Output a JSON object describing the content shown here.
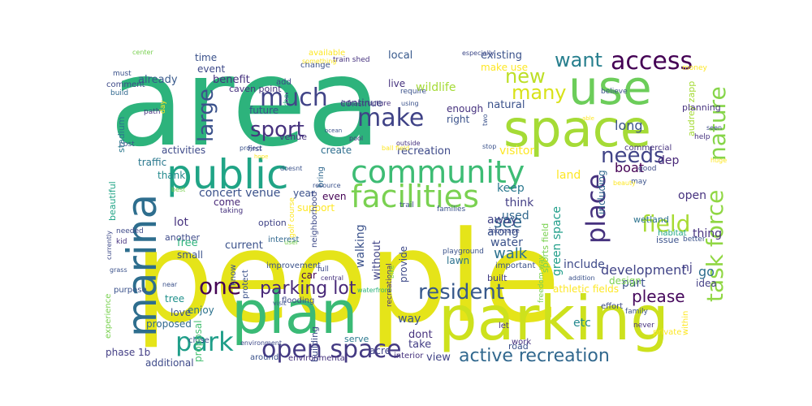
{
  "wordcloud": {
    "words": [
      {
        "text": "people",
        "color": "#e5e419"
      },
      {
        "text": "area",
        "color": "#2db37c"
      },
      {
        "text": "parking",
        "color": "#cde11d"
      },
      {
        "text": "plan",
        "color": "#3aba76"
      },
      {
        "text": "space",
        "color": "#a5db36"
      },
      {
        "text": "use",
        "color": "#6ccd5a"
      },
      {
        "text": "marina",
        "color": "#2e6e8e"
      },
      {
        "text": "public",
        "color": "#20a486"
      },
      {
        "text": "community",
        "color": "#3dbc74"
      },
      {
        "text": "facilities",
        "color": "#7ad151"
      },
      {
        "text": "open space",
        "color": "#443a83"
      },
      {
        "text": "active recreation",
        "color": "#31688e"
      },
      {
        "text": "task force",
        "color": "#90d743"
      },
      {
        "text": "nature",
        "color": "#86d549"
      },
      {
        "text": "access",
        "color": "#440154"
      },
      {
        "text": "field",
        "color": "#a8db34"
      },
      {
        "text": "make",
        "color": "#404387"
      },
      {
        "text": "sport",
        "color": "#46327e"
      },
      {
        "text": "much",
        "color": "#414487"
      },
      {
        "text": "large",
        "color": "#3b528b"
      },
      {
        "text": "park",
        "color": "#1f9e89"
      },
      {
        "text": "one",
        "color": "#440154"
      },
      {
        "text": "new",
        "color": "#bddf26"
      },
      {
        "text": "many",
        "color": "#d8e219"
      },
      {
        "text": "want",
        "color": "#277f8e"
      },
      {
        "text": "place",
        "color": "#46327e"
      },
      {
        "text": "needs",
        "color": "#414487"
      },
      {
        "text": "resident",
        "color": "#38598c"
      },
      {
        "text": "parking lot",
        "color": "#482878"
      },
      {
        "text": "please",
        "color": "#46085c"
      },
      {
        "text": "concert venue",
        "color": "#3b528b"
      },
      {
        "text": "development",
        "color": "#414487"
      },
      {
        "text": "see",
        "color": "#31688e"
      },
      {
        "text": "walk",
        "color": "#2c728e"
      },
      {
        "text": "keep",
        "color": "#2a788e"
      },
      {
        "text": "long",
        "color": "#3b528b"
      },
      {
        "text": "boat",
        "color": "#440154"
      },
      {
        "text": "dep",
        "color": "#482878"
      },
      {
        "text": "open",
        "color": "#46327e"
      },
      {
        "text": "etc",
        "color": "#23898e"
      },
      {
        "text": "land",
        "color": "#fde725"
      },
      {
        "text": "green space",
        "color": "#1f9e89"
      },
      {
        "text": "including",
        "color": "#31688e"
      },
      {
        "text": "already",
        "color": "#38598c"
      },
      {
        "text": "benefit",
        "color": "#46327e"
      },
      {
        "text": "wildlife",
        "color": "#a5db36"
      },
      {
        "text": "existing",
        "color": "#3b528b"
      },
      {
        "text": "future",
        "color": "#3b528b"
      },
      {
        "text": "venue",
        "color": "#46327e"
      },
      {
        "text": "local",
        "color": "#38598c"
      },
      {
        "text": "recreation",
        "color": "#3e4a89"
      },
      {
        "text": "visitor",
        "color": "#fde725"
      },
      {
        "text": "activities",
        "color": "#3e4a89"
      },
      {
        "text": "create",
        "color": "#2e6e8e"
      },
      {
        "text": "traffic",
        "color": "#2a788e"
      },
      {
        "text": "thank",
        "color": "#238a8d"
      },
      {
        "text": "year",
        "color": "#3b528b"
      },
      {
        "text": "even",
        "color": "#440154"
      },
      {
        "text": "support",
        "color": "#fde725"
      },
      {
        "text": "come",
        "color": "#482878"
      },
      {
        "text": "lot",
        "color": "#46327e"
      },
      {
        "text": "free",
        "color": "#2db37c"
      },
      {
        "text": "current",
        "color": "#3b528b"
      },
      {
        "text": "car",
        "color": "#440154"
      },
      {
        "text": "tree",
        "color": "#21918c"
      },
      {
        "text": "enjoy",
        "color": "#2c728e"
      },
      {
        "text": "proposed",
        "color": "#31688e"
      },
      {
        "text": "time",
        "color": "#3b528b"
      },
      {
        "text": "event",
        "color": "#3e4a89"
      },
      {
        "text": "make use",
        "color": "#fde725"
      },
      {
        "text": "stadium",
        "color": "#2a788e"
      },
      {
        "text": "beautiful",
        "color": "#20a486"
      },
      {
        "text": "walking",
        "color": "#3b528b"
      },
      {
        "text": "without",
        "color": "#414487"
      },
      {
        "text": "provide",
        "color": "#3e4a89"
      },
      {
        "text": "along",
        "color": "#3b528b"
      },
      {
        "text": "water",
        "color": "#3b528b"
      },
      {
        "text": "think",
        "color": "#433e85"
      },
      {
        "text": "away",
        "color": "#414487"
      },
      {
        "text": "used",
        "color": "#31688e"
      },
      {
        "text": "thing",
        "color": "#46327e"
      },
      {
        "text": "include",
        "color": "#3e4a89"
      },
      {
        "text": "part",
        "color": "#3b528b"
      },
      {
        "text": "go",
        "color": "#2e6e8e"
      },
      {
        "text": "nj",
        "color": "#433e85"
      },
      {
        "text": "way",
        "color": "#3b528b"
      },
      {
        "text": "dont",
        "color": "#46327e"
      },
      {
        "text": "take",
        "color": "#433e85"
      },
      {
        "text": "view",
        "color": "#414487"
      },
      {
        "text": "athletic fields",
        "color": "#fde725"
      },
      {
        "text": "phase 1b",
        "color": "#433e85"
      },
      {
        "text": "additional",
        "color": "#3e4a89"
      },
      {
        "text": "natural",
        "color": "#3b528b"
      },
      {
        "text": "live",
        "color": "#46327e"
      },
      {
        "text": "continue",
        "color": "#3e4a89"
      },
      {
        "text": "enough",
        "color": "#46327e"
      },
      {
        "text": "right",
        "color": "#3b528b"
      },
      {
        "text": "lawn",
        "color": "#2c728e"
      },
      {
        "text": "built",
        "color": "#433e85"
      },
      {
        "text": "idea",
        "color": "#433e85"
      },
      {
        "text": "love",
        "color": "#3b528b"
      },
      {
        "text": "small",
        "color": "#3b528b"
      },
      {
        "text": "another",
        "color": "#3e4a89"
      },
      {
        "text": "option",
        "color": "#414487"
      },
      {
        "text": "bring",
        "color": "#31688e"
      },
      {
        "text": "neighborhood",
        "color": "#3e4a89"
      },
      {
        "text": "audrey zapp",
        "color": "#a5db36"
      },
      {
        "text": "sports field",
        "color": "#7ad151"
      },
      {
        "text": "commercial",
        "color": "#46327e"
      },
      {
        "text": "wetland",
        "color": "#2c728e"
      },
      {
        "text": "habitat",
        "color": "#22a884"
      },
      {
        "text": "issue",
        "color": "#3b528b"
      },
      {
        "text": "planning",
        "color": "#46327e"
      },
      {
        "text": "interest",
        "color": "#31688e"
      },
      {
        "text": "important",
        "color": "#3b528b"
      },
      {
        "text": "experience",
        "color": "#7ad151"
      },
      {
        "text": "purpose",
        "color": "#3b528b"
      },
      {
        "text": "building",
        "color": "#3e4a89"
      },
      {
        "text": "close",
        "color": "#3b528b"
      },
      {
        "text": "proposal",
        "color": "#44bf70"
      },
      {
        "text": "acre",
        "color": "#414487"
      },
      {
        "text": "road",
        "color": "#3b528b"
      },
      {
        "text": "work",
        "color": "#46327e"
      },
      {
        "text": "let",
        "color": "#46327e"
      },
      {
        "text": "protect",
        "color": "#3b528b"
      },
      {
        "text": "flooding",
        "color": "#3e4a89"
      },
      {
        "text": "design",
        "color": "#7ad151"
      },
      {
        "text": "serve",
        "color": "#2a788e"
      },
      {
        "text": "around",
        "color": "#3b528b"
      },
      {
        "text": "environmental",
        "color": "#46327e"
      },
      {
        "text": "interior",
        "color": "#46327e"
      },
      {
        "text": "within",
        "color": "#fde725"
      },
      {
        "text": "private",
        "color": "#fde725"
      },
      {
        "text": "never",
        "color": "#46327e"
      },
      {
        "text": "effort",
        "color": "#3e4a89"
      },
      {
        "text": "family",
        "color": "#3b528b"
      },
      {
        "text": "freedom way",
        "color": "#7ad151"
      },
      {
        "text": "addition",
        "color": "#3b528b"
      },
      {
        "text": "caven point",
        "color": "#46327e"
      },
      {
        "text": "add",
        "color": "#3e4a89"
      },
      {
        "text": "change",
        "color": "#3b528b"
      },
      {
        "text": "train shed",
        "color": "#46327e"
      },
      {
        "text": "available",
        "color": "#fde725"
      },
      {
        "text": "something",
        "color": "#fde725"
      },
      {
        "text": "must",
        "color": "#3b528b"
      },
      {
        "text": "comment",
        "color": "#3e4a89"
      },
      {
        "text": "build",
        "color": "#31688e"
      },
      {
        "text": "center",
        "color": "#7ad151"
      },
      {
        "text": "path",
        "color": "#46327e"
      },
      {
        "text": "cost",
        "color": "#3b528b"
      },
      {
        "text": "day",
        "color": "#fde725"
      },
      {
        "text": "help",
        "color": "#46327e"
      },
      {
        "text": "money",
        "color": "#fde725"
      },
      {
        "text": "believe",
        "color": "#3b528b"
      },
      {
        "text": "good",
        "color": "#3e4a89"
      },
      {
        "text": "may",
        "color": "#3b528b"
      },
      {
        "text": "beauty",
        "color": "#fde725"
      },
      {
        "text": "better",
        "color": "#3b528b"
      },
      {
        "text": "urban",
        "color": "#2db37c"
      },
      {
        "text": "infrastructure",
        "color": "#46327e"
      },
      {
        "text": "using",
        "color": "#3b528b"
      },
      {
        "text": "require",
        "color": "#3b528b"
      },
      {
        "text": "stop",
        "color": "#3b528b"
      },
      {
        "text": "outside",
        "color": "#46327e"
      },
      {
        "text": "increase",
        "color": "#3e4a89"
      },
      {
        "text": "families",
        "color": "#3b528b"
      },
      {
        "text": "golf course",
        "color": "#fde725"
      },
      {
        "text": "trail",
        "color": "#3b528b"
      },
      {
        "text": "first",
        "color": "#3e4a89"
      },
      {
        "text": "hope",
        "color": "#fde725"
      },
      {
        "text": "resource",
        "color": "#3b528b"
      },
      {
        "text": "taking",
        "color": "#46327e"
      },
      {
        "text": "best",
        "color": "#7ad151"
      },
      {
        "text": "needed",
        "color": "#3e4a89"
      },
      {
        "text": "kid",
        "color": "#46327e"
      },
      {
        "text": "grass",
        "color": "#3b528b"
      },
      {
        "text": "currently",
        "color": "#3e4a89"
      },
      {
        "text": "near",
        "color": "#3b528b"
      },
      {
        "text": "user",
        "color": "#7ad151"
      },
      {
        "text": "improvement",
        "color": "#3b528b"
      },
      {
        "text": "know",
        "color": "#3b528b"
      },
      {
        "text": "full",
        "color": "#3e4a89"
      },
      {
        "text": "central",
        "color": "#46327e"
      },
      {
        "text": "waterfront",
        "color": "#2db37c"
      },
      {
        "text": "visit",
        "color": "#3b528b"
      },
      {
        "text": "environment",
        "color": "#3e4a89"
      },
      {
        "text": "playground",
        "color": "#3b528b"
      },
      {
        "text": "recreational",
        "color": "#46327e"
      },
      {
        "text": "bike",
        "color": "#7ad151"
      },
      {
        "text": "project",
        "color": "#3b528b"
      },
      {
        "text": "ball field",
        "color": "#fde725"
      },
      {
        "text": "especially",
        "color": "#3e4a89"
      },
      {
        "text": "two",
        "color": "#3b528b"
      },
      {
        "text": "able",
        "color": "#fde725"
      },
      {
        "text": "huge",
        "color": "#fde725"
      },
      {
        "text": "seen",
        "color": "#3e4a89"
      },
      {
        "text": "doesnt",
        "color": "#3b528b"
      },
      {
        "text": "ocean",
        "color": "#3b528b"
      },
      {
        "text": "pool",
        "color": "#46327e"
      }
    ]
  }
}
